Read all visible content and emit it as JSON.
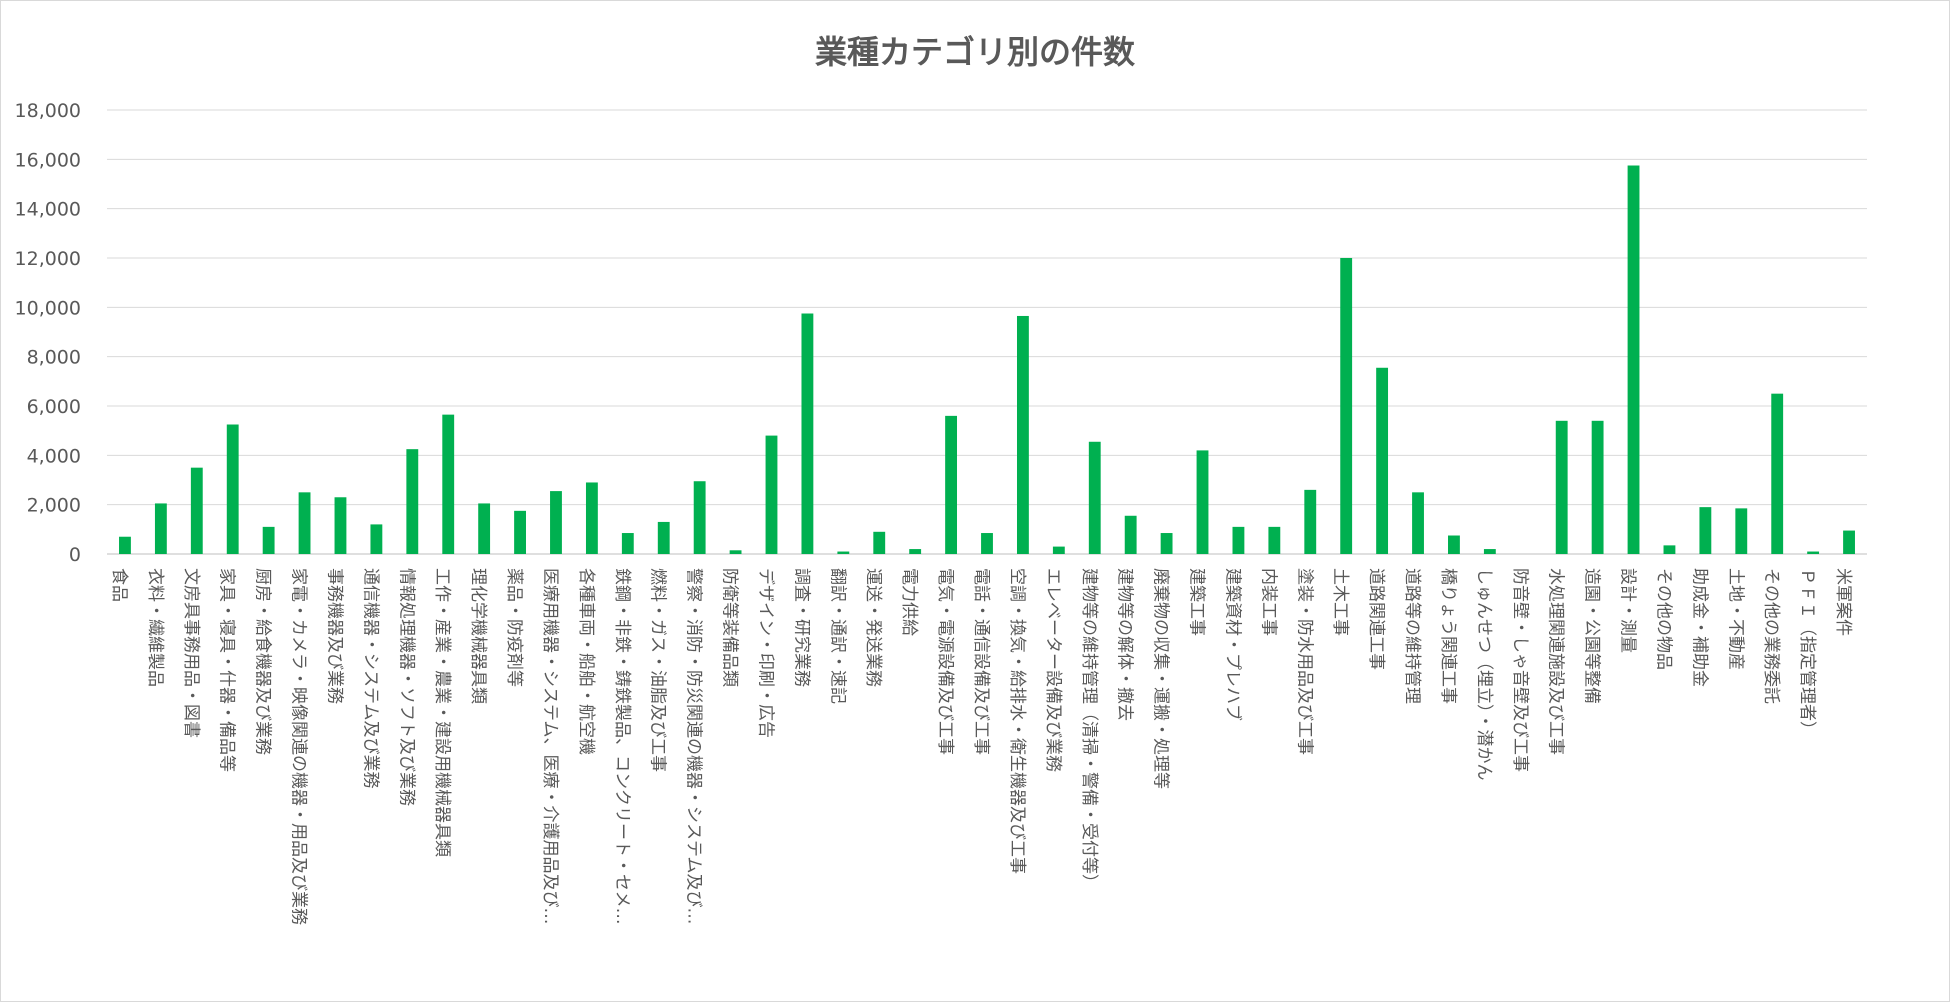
{
  "chart_data": {
    "type": "bar",
    "title": "業種カテゴリ別の件数",
    "xlabel": "",
    "ylabel": "",
    "ylim": [
      0,
      18000
    ],
    "yticks": [
      0,
      2000,
      4000,
      6000,
      8000,
      10000,
      12000,
      14000,
      16000,
      18000
    ],
    "ytick_labels": [
      "0",
      "2,000",
      "4,000",
      "6,000",
      "8,000",
      "10,000",
      "12,000",
      "14,000",
      "16,000",
      "18,000"
    ],
    "grid": true,
    "legend": "none",
    "bar_color": "#00b050",
    "categories": [
      "食品",
      "衣料・繊維製品",
      "文房具事務用品・図書",
      "家具・寝具・什器・備品等",
      "厨房・給食機器及び業務",
      "家電・カメラ・映像関連の機器・用品及び業務",
      "事務機器及び業務",
      "通信機器・システム及び業務",
      "情報処理機器・ソフト及び業務",
      "工作・産業・農業・建設用機械器具類",
      "理化学機械器具類",
      "薬品・防疫剤等",
      "医療用機器・システム、医療・介護用品及び…",
      "各種車両・船舶・航空機",
      "鉄鋼・非鉄・鋳鉄製品、コンクリート・セメ…",
      "燃料・ガス・油脂及び工事",
      "警察・消防・防災関連の機器・システム及び…",
      "防衛等装備品類",
      "デザイン・印刷・広告",
      "調査・研究業務",
      "翻訳・通訳・速記",
      "運送・発送業務",
      "電力供給",
      "電気・電源設備及び工事",
      "電話・通信設備及び工事",
      "空調・換気・給排水・衛生機器及び工事",
      "エレベーター設備及び業務",
      "建物等の維持管理（清掃・警備・受付等）",
      "建物等の解体・撤去",
      "廃棄物の収集・運搬・処理等",
      "建築工事",
      "建築資材・プレハブ",
      "内装工事",
      "塗装・防水用品及び工事",
      "土木工事",
      "道路関連工事",
      "道路等の維持管理",
      "橋りょう関連工事",
      "しゅんせつ（埋立）・潜かん",
      "防音壁・しゃ音壁及び工事",
      "水処理関連施設及び工事",
      "造園・公園等整備",
      "設計・測量",
      "その他の物品",
      "助成金・補助金",
      "土地・不動産",
      "その他の業務委託",
      "ＰＦＩ（指定管理者）",
      "米軍案件"
    ],
    "values": [
      700,
      2050,
      3500,
      5250,
      1100,
      2500,
      2300,
      1200,
      4250,
      5650,
      2050,
      1750,
      2550,
      2900,
      850,
      1300,
      2950,
      150,
      4800,
      9750,
      100,
      900,
      200,
      5600,
      850,
      9650,
      300,
      4550,
      1550,
      850,
      4200,
      1100,
      1100,
      2600,
      12000,
      7550,
      2500,
      750,
      200,
      0,
      5400,
      5400,
      15750,
      350,
      1900,
      1850,
      6500,
      100,
      950
    ]
  }
}
